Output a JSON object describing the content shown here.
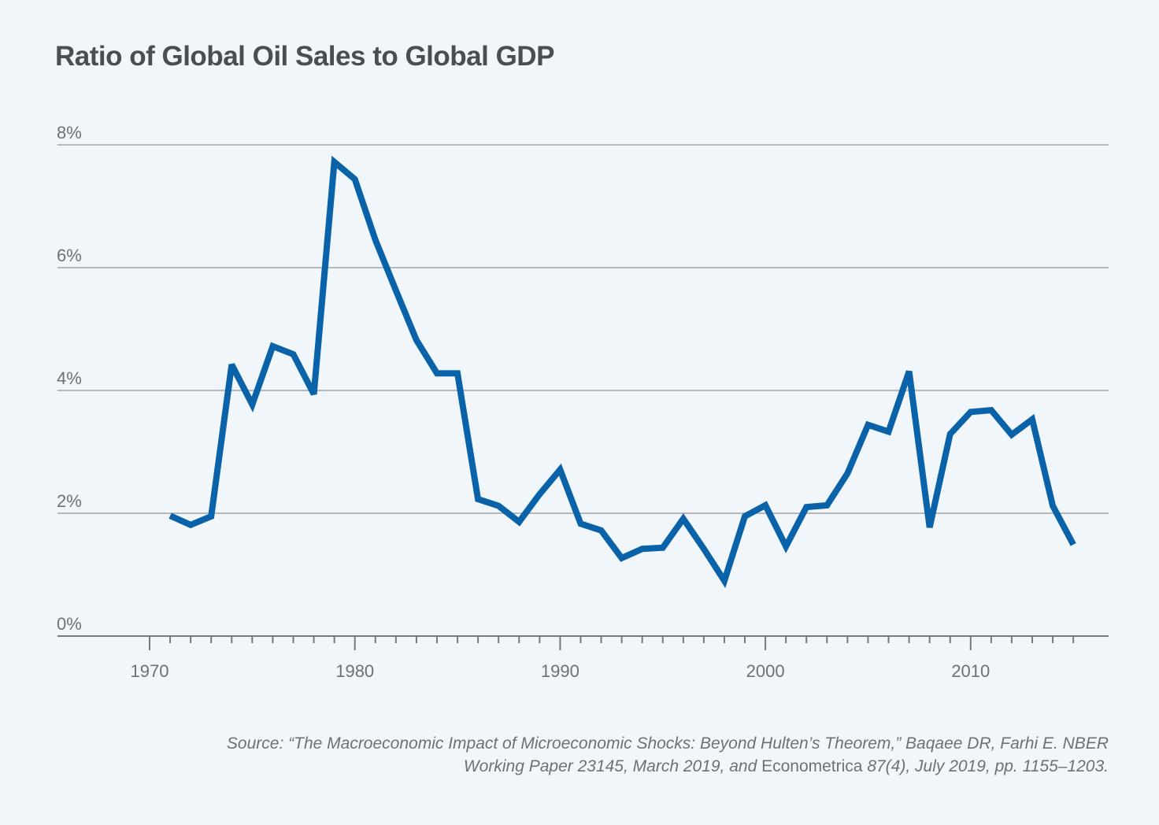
{
  "title": "Ratio of Global Oil Sales to Global GDP",
  "source": {
    "line1": "Source: “The Macroeconomic Impact of Microeconomic Shocks: Beyond Hulten’s Theorem,” Baqaee DR, Farhi E. NBER",
    "line2_a": "Working Paper 23145, March 2019, and ",
    "line2_journal": "Econometrica",
    "line2_b": " 87(4), July 2019, pp. 1155–1203."
  },
  "colors": {
    "line": "#0a63a8",
    "grid": "#b4b8be",
    "axis": "#75787d",
    "text": "#6e7075",
    "background": "#f1f6fa"
  },
  "chart_data": {
    "type": "line",
    "title": "Ratio of Global Oil Sales to Global GDP",
    "xlabel": "",
    "ylabel": "",
    "xlim": [
      1965,
      2017
    ],
    "ylim": [
      0,
      8
    ],
    "grid": true,
    "yticks": [
      0,
      2,
      4,
      6,
      8
    ],
    "ytick_labels": [
      "0%",
      "2%",
      "4%",
      "6%",
      "8%"
    ],
    "xticks_major": [
      1970,
      1980,
      1990,
      2000,
      2010
    ],
    "xtick_labels": [
      "1970",
      "1980",
      "1990",
      "2000",
      "2010"
    ],
    "xticks_minor_range": [
      1970,
      2015
    ],
    "series": [
      {
        "name": "Oil sales / GDP (%)",
        "x": [
          1971,
          1972,
          1973,
          1974,
          1975,
          1976,
          1977,
          1978,
          1979,
          1980,
          1981,
          1982,
          1983,
          1984,
          1985,
          1986,
          1987,
          1988,
          1989,
          1990,
          1991,
          1992,
          1993,
          1994,
          1995,
          1996,
          1997,
          1998,
          1999,
          2000,
          2001,
          2002,
          2003,
          2004,
          2005,
          2006,
          2007,
          2008,
          2009,
          2010,
          2011,
          2012,
          2013,
          2014,
          2015
        ],
        "values": [
          1.96,
          1.81,
          1.95,
          4.42,
          3.77,
          4.72,
          4.59,
          3.94,
          7.72,
          7.44,
          6.45,
          5.63,
          4.82,
          4.28,
          4.28,
          2.23,
          2.12,
          1.86,
          2.31,
          2.71,
          1.83,
          1.72,
          1.27,
          1.42,
          1.44,
          1.91,
          1.42,
          0.9,
          1.95,
          2.13,
          1.46,
          2.1,
          2.13,
          2.65,
          3.44,
          3.33,
          4.31,
          1.77,
          3.29,
          3.65,
          3.68,
          3.28,
          3.53,
          2.12,
          1.49
        ]
      }
    ]
  }
}
